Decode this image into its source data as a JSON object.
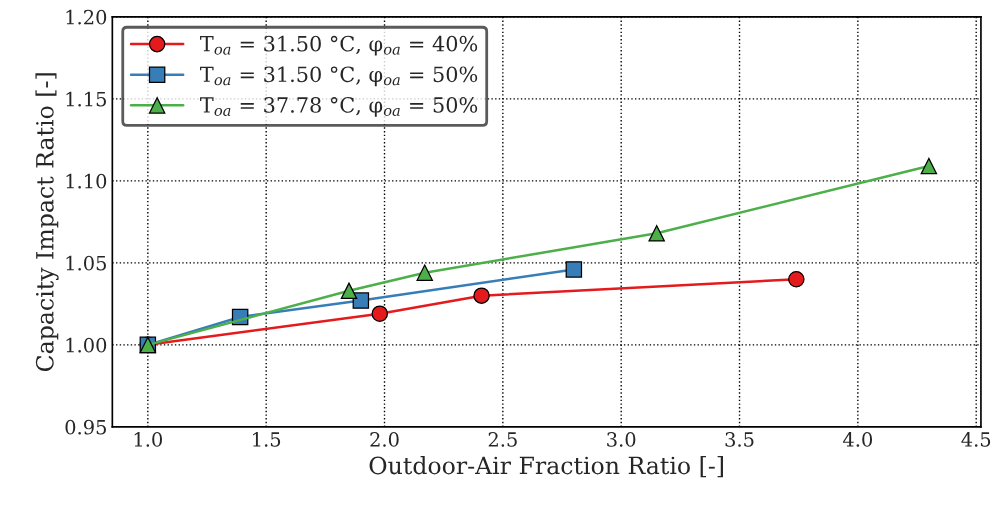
{
  "chart_data": {
    "type": "line",
    "xlabel": "Outdoor-Air Fraction Ratio [-]",
    "ylabel": "Capacity Impact Ratio [-]",
    "xlim": [
      0.85,
      4.52
    ],
    "xticks": [
      {
        "value": 1,
        "label": "1.0"
      },
      1.5,
      {
        "value": 2,
        "label": "2.0"
      },
      2.5,
      {
        "value": 3,
        "label": "3.0"
      },
      3.5,
      {
        "value": 4,
        "label": "4.0"
      },
      4.5
    ],
    "ylim": [
      0.95,
      1.2
    ],
    "yticks": [
      0.95,
      {
        "value": 1,
        "label": "1.00"
      },
      1.05,
      {
        "value": 1.1,
        "label": "1.10"
      },
      1.15,
      {
        "value": 1.2,
        "label": "1.20"
      }
    ],
    "grid": true,
    "legend": "top left",
    "line_style": "solid",
    "series": [
      {
        "name": "T$_{oa}$ = 31.50 °C, φ$_{oa}$ = 40%",
        "color": "#e41a1c",
        "marker": "circle",
        "x": [
          1.0,
          1.98,
          2.41,
          3.74
        ],
        "values": [
          1.0,
          1.019,
          1.03,
          1.04
        ]
      },
      {
        "name": "T$_{oa}$ = 31.50 °C, φ$_{oa}$ = 50%",
        "color": "#377eb8",
        "marker": "square",
        "x": [
          1.0,
          1.39,
          1.9,
          2.8
        ],
        "values": [
          1.0,
          1.017,
          1.027,
          1.046
        ]
      },
      {
        "name": "T$_{oa}$ = 37.78 °C, φ$_{oa}$ = 50%",
        "color": "#4daf4a",
        "marker": "triangle",
        "x": [
          1.0,
          1.85,
          2.17,
          3.15,
          4.3
        ],
        "values": [
          1.0,
          1.033,
          1.044,
          1.068,
          1.109
        ]
      }
    ]
  }
}
